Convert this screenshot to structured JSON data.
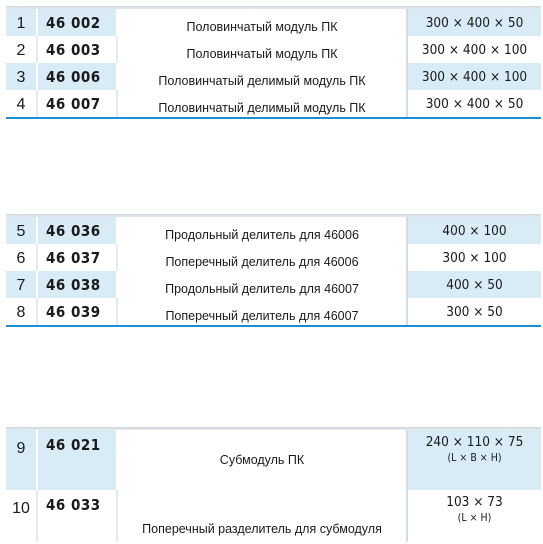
{
  "groups": [
    {
      "rows": [
        {
          "num": "1",
          "code": "46 002",
          "name": "Половинчатый модуль ПК",
          "dim": "300 × 400 × 50"
        },
        {
          "num": "2",
          "code": "46 003",
          "name": "Половинчатый модуль ПК",
          "dim": "300 × 400 × 100"
        },
        {
          "num": "3",
          "code": "46 006",
          "name": "Половинчатый делимый модуль ПК",
          "dim": "300 × 400 × 100"
        },
        {
          "num": "4",
          "code": "46 007",
          "name": "Половинчатый делимый модуль ПК",
          "dim": "300 × 400 × 50"
        }
      ]
    },
    {
      "rows": [
        {
          "num": "5",
          "code": "46 036",
          "name": "Продольный делитель для 46006",
          "dim": "400 × 100"
        },
        {
          "num": "6",
          "code": "46 037",
          "name": "Поперечный делитель для 46006",
          "dim": "300 × 100"
        },
        {
          "num": "7",
          "code": "46 038",
          "name": "Продольный делитель для 46007",
          "dim": "400 × 50"
        },
        {
          "num": "8",
          "code": "46 039",
          "name": "Поперечный делитель для 46007",
          "dim": "300 × 50"
        }
      ]
    },
    {
      "rows": [
        {
          "num": "9",
          "code": "46 021",
          "name": "Субмодуль ПК",
          "dim": "240 × 110 × 75",
          "dim_sub": "(L × B × H)"
        },
        {
          "num": "10",
          "code": "46 033",
          "name": "Поперечный разделитель для субмодуля",
          "dim": "103 × 73",
          "dim_sub": "(L × H)"
        }
      ]
    }
  ],
  "colors": {
    "row_blue": "#d8ecf8",
    "accent_line": "#1a8fd6"
  }
}
